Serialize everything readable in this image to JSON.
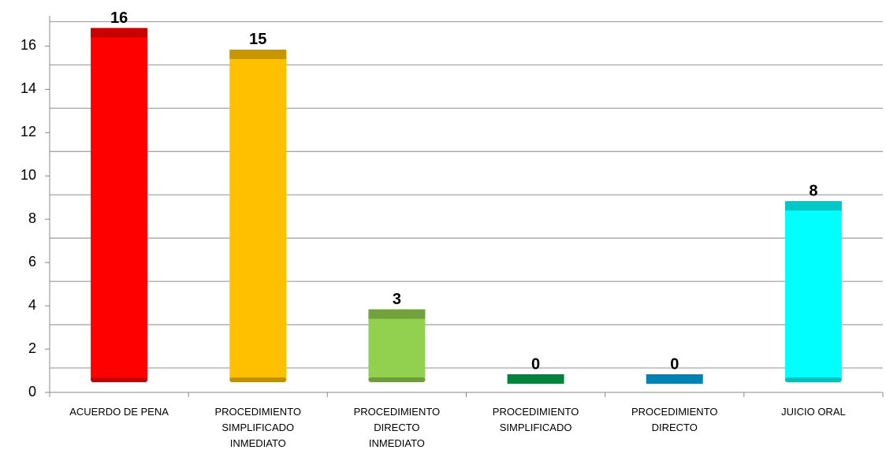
{
  "chart_data": {
    "type": "bar",
    "categories": [
      "ACUERDO DE PENA",
      "PROCEDIMIENTO\nSIMPLIFICADO\nINMEDIATO",
      "PROCEDIMIENTO\nDIRECTO\nINMEDIATO",
      "PROCEDIMIENTO\nSIMPLIFICADO",
      "PROCEDIMIENTO\nDIRECTO",
      "JUICIO ORAL"
    ],
    "values": [
      16,
      15,
      3,
      0,
      0,
      8
    ],
    "colors": [
      "#ff0000",
      "#ffc000",
      "#92d050",
      "#00843d",
      "#0083b3",
      "#00ffff"
    ],
    "ylim": [
      0,
      17
    ],
    "yticks": [
      0,
      2,
      4,
      6,
      8,
      10,
      12,
      14,
      16
    ],
    "grid": true
  }
}
